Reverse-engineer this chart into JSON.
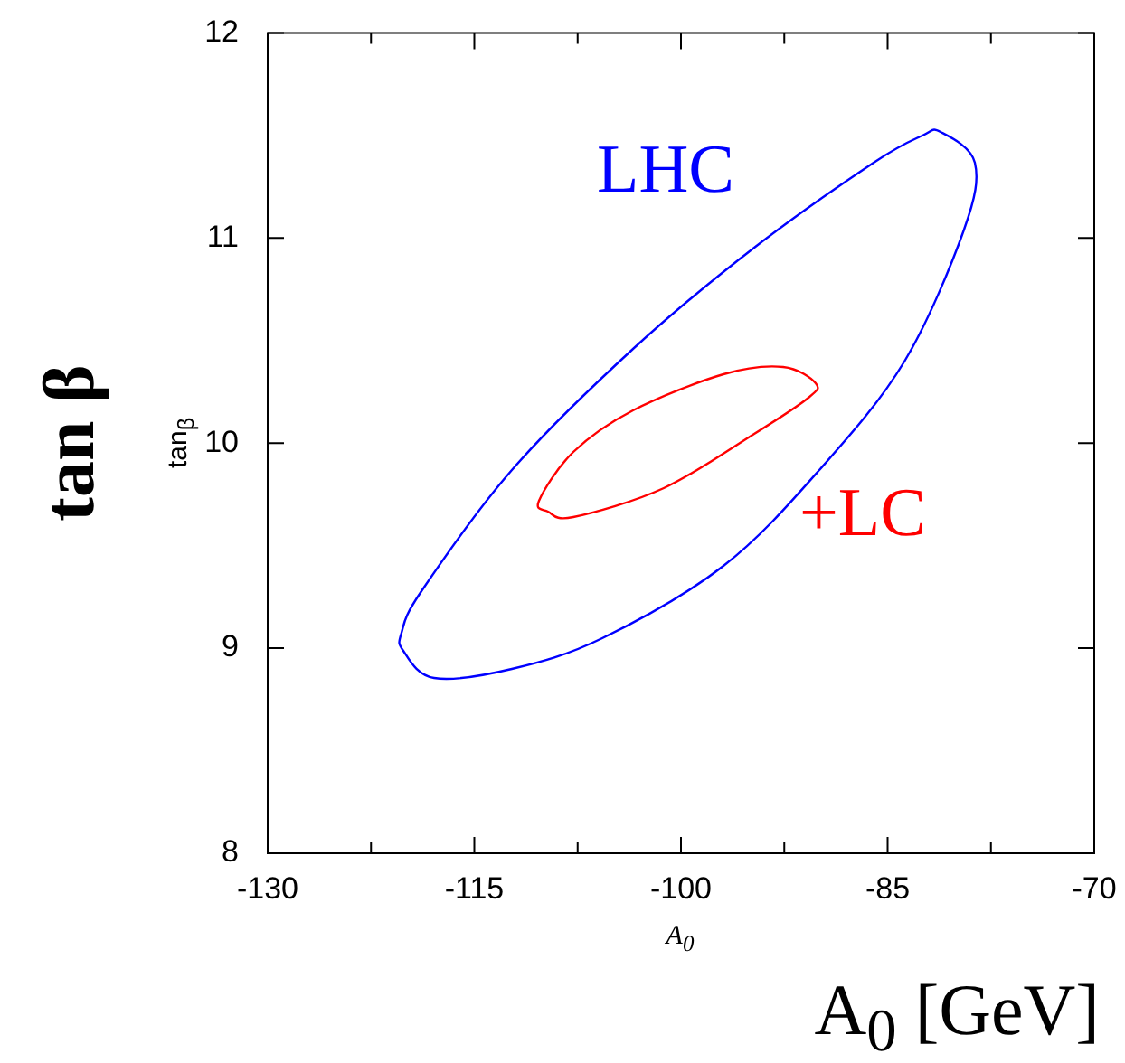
{
  "chart_data": {
    "type": "line",
    "xlabel": "A$_{0}$",
    "ylabel": "tan$_{β}$",
    "annotations": [
      "tan β",
      "A$_{0}$ [GeV]",
      "LHC",
      "+LC"
    ],
    "xlim": [
      -130,
      -70
    ],
    "ylim": [
      8,
      12
    ],
    "xticks": [
      -130,
      {
        "value": -122.5,
        "label": null
      },
      -115,
      {
        "value": -107.5,
        "label": null
      },
      -100,
      {
        "value": -92.5,
        "label": null
      },
      -85,
      {
        "value": -77.5,
        "label": null
      },
      -70
    ],
    "yticks": [
      8,
      9,
      10,
      11,
      12
    ]
  }
}
